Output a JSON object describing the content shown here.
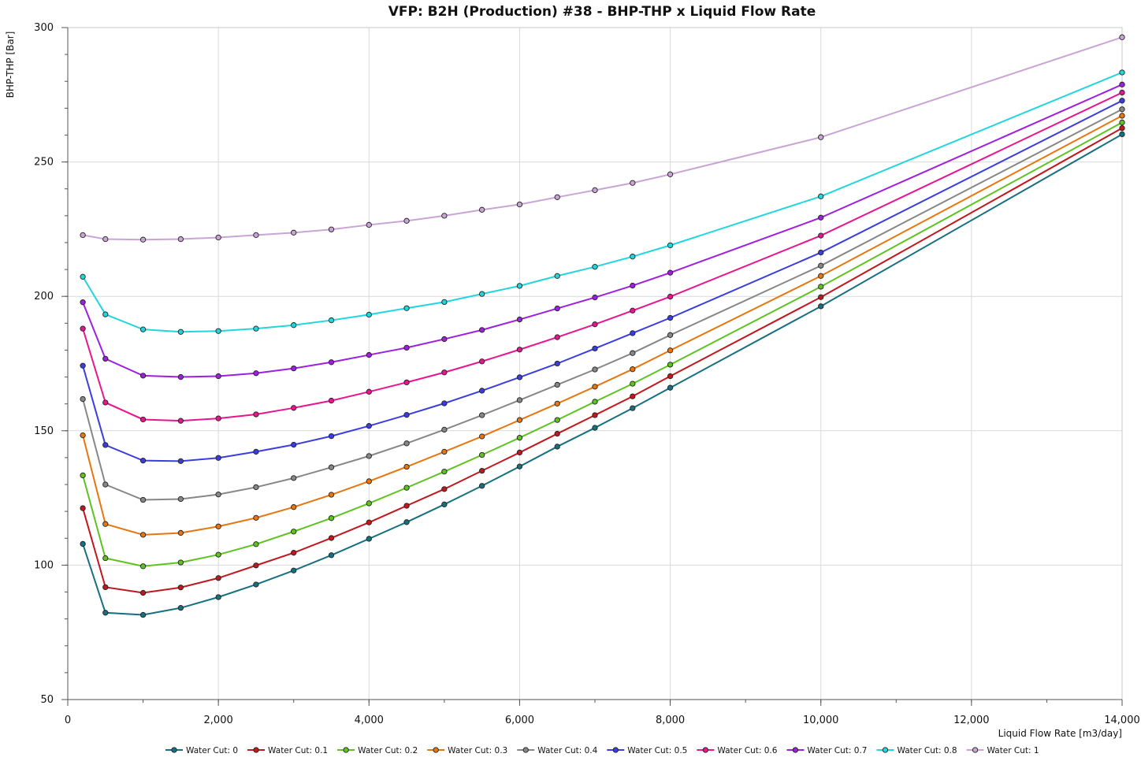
{
  "chart_data": {
    "type": "line",
    "title": "VFP: B2H (Production) #38 - BHP-THP x Liquid Flow Rate",
    "xlabel": "Liquid Flow Rate [m3/day]",
    "ylabel": "BHP-THP [Bar]",
    "xlim": [
      0,
      14000
    ],
    "ylim": [
      50,
      300
    ],
    "x_ticks": [
      0,
      2000,
      4000,
      6000,
      8000,
      10000,
      12000,
      14000
    ],
    "x_tick_labels": [
      "0",
      "2,000",
      "4,000",
      "6,000",
      "8,000",
      "10,000",
      "12,000",
      "14,000"
    ],
    "y_ticks": [
      50,
      100,
      150,
      200,
      250,
      300
    ],
    "y_tick_labels": [
      "50",
      "100",
      "150",
      "200",
      "250",
      "300"
    ],
    "grid": true,
    "legend_position": "bottom",
    "x": [
      200,
      500,
      1000,
      1500,
      2000,
      2500,
      3000,
      3500,
      4000,
      4500,
      5000,
      5500,
      6000,
      6500,
      7000,
      7500,
      8000,
      10000,
      14000
    ],
    "series": [
      {
        "name": "Water Cut: 0",
        "color": "#17707f",
        "values": [
          107.9,
          82.3,
          81.5,
          84.1,
          88.1,
          92.8,
          98.0,
          103.7,
          109.8,
          116.0,
          122.6,
          129.5,
          136.7,
          144.1,
          151.1,
          158.4,
          166.0,
          196.3,
          260.3
        ]
      },
      {
        "name": "Water Cut: 0.1",
        "color": "#c0181e",
        "values": [
          121.2,
          91.8,
          89.7,
          91.7,
          95.2,
          99.9,
          104.6,
          110.1,
          115.9,
          122.1,
          128.3,
          135.1,
          141.9,
          148.9,
          155.8,
          162.8,
          170.3,
          199.7,
          262.6
        ]
      },
      {
        "name": "Water Cut: 0.2",
        "color": "#5ec321",
        "values": [
          133.4,
          102.6,
          99.6,
          101.0,
          103.9,
          107.8,
          112.5,
          117.5,
          123.0,
          128.8,
          134.8,
          141.0,
          147.4,
          154.0,
          160.8,
          167.5,
          174.6,
          203.6,
          264.7
        ]
      },
      {
        "name": "Water Cut: 0.3",
        "color": "#e8760f",
        "values": [
          148.3,
          115.3,
          111.3,
          112.0,
          114.4,
          117.6,
          121.6,
          126.2,
          131.2,
          136.6,
          142.2,
          147.9,
          154.0,
          160.1,
          166.4,
          172.9,
          179.9,
          207.6,
          267.2
        ]
      },
      {
        "name": "Water Cut: 0.4",
        "color": "#878787",
        "values": [
          161.8,
          130.0,
          124.3,
          124.6,
          126.3,
          129.0,
          132.4,
          136.4,
          140.6,
          145.3,
          150.4,
          155.8,
          161.4,
          167.1,
          172.8,
          178.9,
          185.6,
          211.4,
          269.6
        ]
      },
      {
        "name": "Water Cut: 0.5",
        "color": "#3a3ee0",
        "values": [
          174.2,
          144.7,
          138.9,
          138.7,
          139.9,
          142.2,
          144.8,
          148.0,
          151.8,
          155.9,
          160.2,
          164.9,
          169.9,
          175.0,
          180.6,
          186.3,
          192.0,
          216.3,
          272.8
        ]
      },
      {
        "name": "Water Cut: 0.6",
        "color": "#e81590",
        "values": [
          188.0,
          160.5,
          154.2,
          153.7,
          154.6,
          156.1,
          158.5,
          161.2,
          164.5,
          168.0,
          171.7,
          175.8,
          180.2,
          184.8,
          189.6,
          194.7,
          199.9,
          222.6,
          275.8
        ]
      },
      {
        "name": "Water Cut: 0.7",
        "color": "#9e1fe0",
        "values": [
          197.8,
          176.8,
          170.5,
          170.0,
          170.3,
          171.4,
          173.2,
          175.5,
          178.2,
          180.9,
          184.1,
          187.5,
          191.4,
          195.5,
          199.6,
          204.0,
          208.8,
          229.3,
          278.8
        ]
      },
      {
        "name": "Water Cut: 0.8",
        "color": "#1fd6dc",
        "values": [
          207.3,
          193.3,
          187.7,
          186.8,
          187.1,
          188.0,
          189.3,
          191.1,
          193.2,
          195.6,
          197.9,
          200.9,
          203.9,
          207.6,
          211.0,
          214.8,
          219.0,
          237.2,
          283.3
        ]
      },
      {
        "name": "Water Cut: 1",
        "color": "#c9a4d4",
        "values": [
          222.8,
          221.3,
          221.1,
          221.3,
          221.9,
          222.8,
          223.7,
          224.9,
          226.6,
          228.1,
          230.0,
          232.2,
          234.2,
          236.9,
          239.5,
          242.2,
          245.4,
          259.2,
          296.4
        ]
      }
    ]
  }
}
